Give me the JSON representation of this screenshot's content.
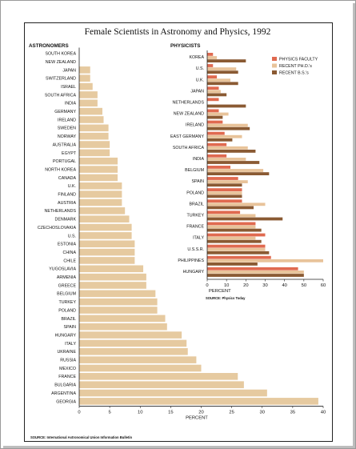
{
  "title": "Female Scientists in Astronomy and Physics, 1992",
  "colors": {
    "astronomers": "#e6caa0",
    "physics_faculty": "#e06a50",
    "recent_phd": "#e8c39a",
    "recent_bs": "#8a5a33"
  },
  "chart_data": [
    {
      "type": "bar",
      "orientation": "horizontal",
      "title": "ASTRONOMERS",
      "xlabel": "PERCENT",
      "xlim": [
        0,
        40
      ],
      "xticks": [
        0,
        5,
        10,
        15,
        20,
        25,
        30,
        35,
        40
      ],
      "source": "SOURCE: International Astronomical Union Information Bulletin",
      "categories": [
        "SOUTH KOREA",
        "NEW ZEALAND",
        "JAPAN",
        "SWITZERLAND",
        "ISRAEL",
        "SOUTH AFRICA",
        "INDIA",
        "GERMANY",
        "IRELAND",
        "SWEDEN",
        "NORWAY",
        "AUSTRALIA",
        "EGYPT",
        "PORTUGAL",
        "NORTH KOREA",
        "CANADA",
        "U.K.",
        "FINLAND",
        "AUSTRIA",
        "NETHERLANDS",
        "DENMARK",
        "CZECHOSLOVAKIA",
        "U.S.",
        "ESTONIA",
        "CHINA",
        "CHILE",
        "YUGOSLAVIA",
        "ARMENIA",
        "GREECE",
        "BELGIUM",
        "TURKEY",
        "POLAND",
        "BRAZIL",
        "SPAIN",
        "HUNGARY",
        "ITALY",
        "UKRAINE",
        "RUSSIA",
        "MEXICO",
        "FRANCE",
        "BULGARIA",
        "ARGENTINA",
        "GEORGIA"
      ],
      "values": [
        0,
        0,
        1.8,
        1.8,
        2.2,
        3.0,
        3.0,
        3.8,
        4.0,
        4.8,
        4.8,
        5.0,
        5.0,
        6.3,
        6.3,
        6.3,
        7.0,
        7.0,
        7.0,
        7.5,
        8.2,
        8.6,
        8.6,
        9.1,
        9.1,
        9.1,
        10.5,
        11.0,
        11.0,
        12.5,
        12.8,
        12.8,
        14.1,
        14.4,
        16.8,
        17.6,
        17.8,
        19.2,
        20.0,
        26.0,
        27.0,
        30.8,
        39.2
      ]
    },
    {
      "type": "bar",
      "orientation": "horizontal",
      "title": "PHYSICISTS",
      "xlabel": "PERCENT",
      "xlim": [
        0,
        60
      ],
      "xticks": [
        0,
        10,
        20,
        30,
        40,
        50,
        60
      ],
      "source": "SOURCE: Physics Today",
      "legend_position": "top-right",
      "categories": [
        "KOREA",
        "U.S.",
        "U.K.",
        "JAPAN",
        "NETHERLANDS",
        "NEW ZEALAND",
        "IRELAND",
        "EAST GERMANY",
        "SOUTH AFRICA",
        "INDIA",
        "BELGIUM",
        "SPAIN",
        "POLAND",
        "BRAZIL",
        "TURKEY",
        "FRANCE",
        "ITALY",
        "U.S.S.R.",
        "PHILIPPINES",
        "HUNGARY"
      ],
      "series": [
        {
          "name": "PHYSICS FACULTY",
          "values": [
            3,
            3,
            5,
            6,
            6,
            6,
            8,
            9,
            10,
            10,
            12,
            16,
            18,
            18,
            17,
            25,
            30,
            30,
            33,
            47
          ]
        },
        {
          "name": "RECENT PH.D.'s",
          "values": [
            5,
            15,
            12,
            7,
            0,
            11,
            21,
            18,
            21,
            20,
            29,
            21,
            18,
            30,
            25,
            25,
            25,
            30,
            60,
            50
          ]
        },
        {
          "name": "RECENT B.S.'s",
          "values": [
            20,
            16,
            16,
            10,
            20,
            8,
            22,
            13,
            25,
            27,
            32,
            18,
            18,
            24,
            39,
            28,
            28,
            32,
            26,
            50
          ]
        }
      ]
    }
  ]
}
